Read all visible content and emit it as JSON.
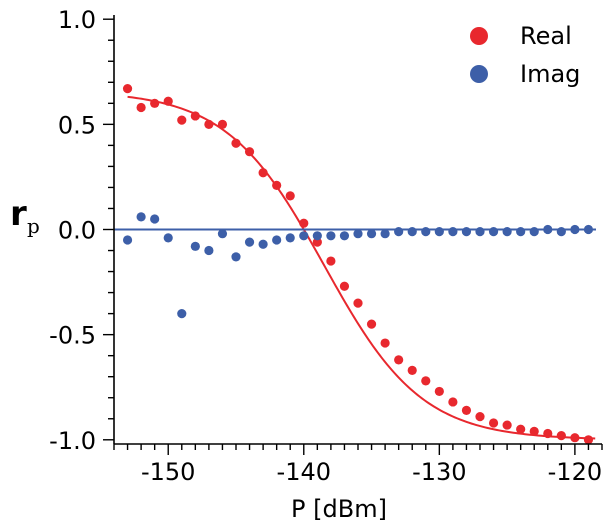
{
  "chart_data": {
    "type": "scatter",
    "xlabel": "P [dBm]",
    "ylabel": "r",
    "ylabel_subscript": "p",
    "xlim": [
      -154,
      -118
    ],
    "ylim": [
      -1.02,
      1.02
    ],
    "xticks": [
      -150,
      -140,
      -130,
      -120
    ],
    "xtick_labels": [
      "-150",
      "-140",
      "-130",
      "-120"
    ],
    "yticks": [
      1.0,
      0.5,
      0.0,
      -0.5,
      -1.0
    ],
    "ytick_labels": [
      "1.0",
      "0.5",
      "0.0",
      "-0.5",
      "-1.0"
    ],
    "legend_position": "top-right",
    "grid": false,
    "series": [
      {
        "name": "Real",
        "color": "#e8282e",
        "x": [
          -153,
          -152,
          -151,
          -150,
          -149,
          -148,
          -147,
          -146,
          -145,
          -144,
          -143,
          -142,
          -141,
          -140,
          -139,
          -138,
          -137,
          -136,
          -135,
          -134,
          -133,
          -132,
          -131,
          -130,
          -129,
          -128,
          -127,
          -126,
          -125,
          -124,
          -123,
          -122,
          -121,
          -120,
          -119
        ],
        "y": [
          0.67,
          0.58,
          0.6,
          0.61,
          0.52,
          0.54,
          0.5,
          0.5,
          0.41,
          0.37,
          0.27,
          0.21,
          0.16,
          0.03,
          -0.06,
          -0.15,
          -0.27,
          -0.35,
          -0.45,
          -0.54,
          -0.62,
          -0.67,
          -0.72,
          -0.77,
          -0.82,
          -0.86,
          -0.89,
          -0.92,
          -0.93,
          -0.95,
          -0.96,
          -0.97,
          -0.98,
          -0.99,
          -1.0
        ]
      },
      {
        "name": "Imag",
        "color": "#3d5fa8",
        "x": [
          -153,
          -152,
          -151,
          -150,
          -149,
          -148,
          -147,
          -146,
          -145,
          -144,
          -143,
          -142,
          -141,
          -140,
          -139,
          -138,
          -137,
          -136,
          -135,
          -134,
          -133,
          -132,
          -131,
          -130,
          -129,
          -128,
          -127,
          -126,
          -125,
          -124,
          -123,
          -122,
          -121,
          -120,
          -119
        ],
        "y": [
          -0.05,
          0.06,
          0.05,
          -0.04,
          -0.4,
          -0.08,
          -0.1,
          -0.02,
          -0.13,
          -0.06,
          -0.07,
          -0.05,
          -0.04,
          -0.03,
          -0.03,
          -0.03,
          -0.03,
          -0.02,
          -0.02,
          -0.02,
          -0.01,
          -0.01,
          -0.01,
          -0.01,
          -0.01,
          -0.01,
          -0.01,
          -0.01,
          -0.01,
          -0.01,
          -0.01,
          0.0,
          -0.01,
          0.0,
          0.0
        ]
      }
    ],
    "fits": [
      {
        "series": "Real",
        "color": "#e8282e",
        "model": "sigmoid",
        "x0": -138.5,
        "width": 3.6,
        "lower": -1.0,
        "upper": 0.66
      },
      {
        "series": "Imag",
        "color": "#3d5fa8",
        "model": "constant",
        "value": 0.0
      }
    ]
  }
}
